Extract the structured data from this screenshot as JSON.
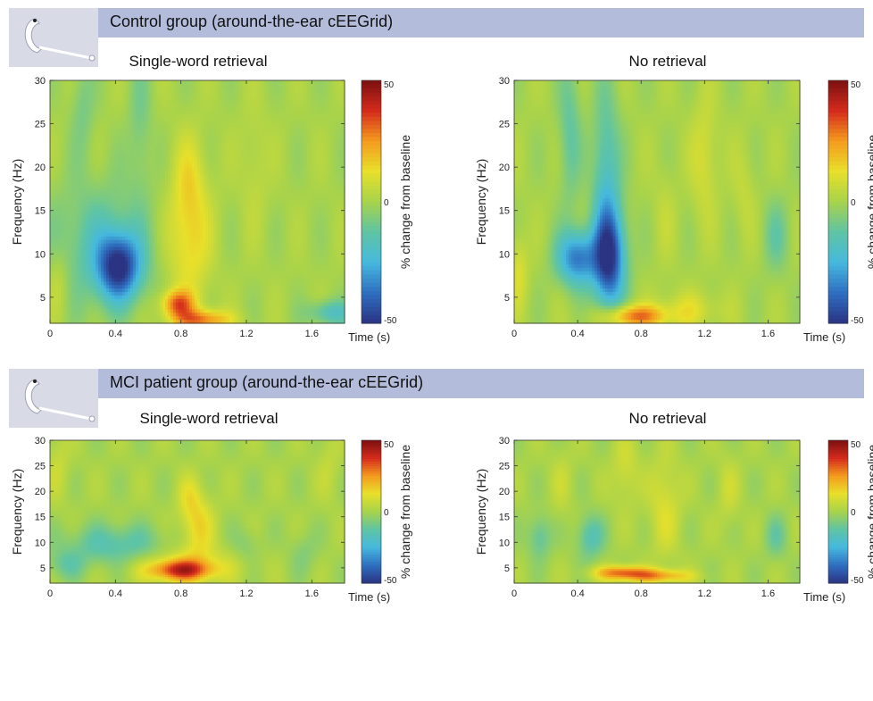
{
  "groups": [
    {
      "title": "Control group (around-the-ear cEEGrid)"
    },
    {
      "title": "MCI patient group (around-the-ear cEEGrid)"
    }
  ],
  "icons": {
    "ear_electrode": "cEEGrid-ear-electrode-icon"
  },
  "colors": {
    "header_bar": "#b4bcdc",
    "colormap": [
      "#2b3383",
      "#2f6fc0",
      "#45b9de",
      "#5fc4a4",
      "#a8d34b",
      "#e8e02a",
      "#f49a1e",
      "#d42a1c",
      "#7a1010"
    ]
  },
  "chart_data": [
    {
      "type": "heatmap",
      "title": "Single-word retrieval",
      "xlabel": "Time (s)",
      "ylabel": "Frequency (Hz)",
      "xlim": [
        0,
        1.8
      ],
      "ylim": [
        2,
        30
      ],
      "xticks": [
        "0",
        "0.4",
        "0.8",
        "1.2",
        "1.6"
      ],
      "yticks": [
        "5",
        "10",
        "15",
        "20",
        "25",
        "30"
      ],
      "colorbar": {
        "label": "% change from baseline",
        "ticks": [
          "50",
          "0",
          "-50"
        ],
        "range": [
          -50,
          50
        ]
      },
      "blobs": [
        {
          "t": 0.42,
          "f": 8.5,
          "st": 0.09,
          "sf": 2.6,
          "v": -46
        },
        {
          "t": 0.3,
          "f": 11,
          "st": 0.22,
          "sf": 5,
          "v": -14
        },
        {
          "t": 0.85,
          "f": 12,
          "st": 0.09,
          "sf": 5.5,
          "v": 16
        },
        {
          "t": 0.85,
          "f": 19,
          "st": 0.07,
          "sf": 3.5,
          "v": 7
        },
        {
          "t": 0.78,
          "f": 4.2,
          "st": 0.07,
          "sf": 1.1,
          "v": 30
        },
        {
          "t": 0.93,
          "f": 2.4,
          "st": 0.12,
          "sf": 0.8,
          "v": 28
        },
        {
          "t": 1.72,
          "f": 3.2,
          "st": 0.1,
          "sf": 1.0,
          "v": -18
        },
        {
          "t": 0.05,
          "f": 7,
          "st": 0.05,
          "sf": 3,
          "v": 8
        },
        {
          "t": 0.55,
          "f": 25,
          "st": 0.05,
          "sf": 6,
          "v": -8
        },
        {
          "t": 0.2,
          "f": 27,
          "st": 0.05,
          "sf": 4,
          "v": -8
        },
        {
          "t": 1.25,
          "f": 20,
          "st": 0.06,
          "sf": 5,
          "v": 5
        }
      ]
    },
    {
      "type": "heatmap",
      "title": "No retrieval",
      "xlabel": "Time (s)",
      "ylabel": "Frequency (Hz)",
      "xlim": [
        0,
        1.8
      ],
      "ylim": [
        2,
        30
      ],
      "xticks": [
        "0",
        "0.4",
        "0.8",
        "1.2",
        "1.6"
      ],
      "yticks": [
        "5",
        "10",
        "15",
        "20",
        "25",
        "30"
      ],
      "colorbar": {
        "label": "% change from baseline",
        "ticks": [
          "50",
          "0",
          "-50"
        ],
        "range": [
          -50,
          50
        ]
      },
      "blobs": [
        {
          "t": 0.4,
          "f": 9.5,
          "st": 0.09,
          "sf": 2.2,
          "v": -36
        },
        {
          "t": 0.6,
          "f": 9.5,
          "st": 0.07,
          "sf": 4.0,
          "v": -46
        },
        {
          "t": 0.58,
          "f": 19,
          "st": 0.06,
          "sf": 7,
          "v": -18
        },
        {
          "t": 0.35,
          "f": 24,
          "st": 0.05,
          "sf": 6,
          "v": -12
        },
        {
          "t": 0.75,
          "f": 2.8,
          "st": 0.14,
          "sf": 0.9,
          "v": 30
        },
        {
          "t": 1.1,
          "f": 3.5,
          "st": 0.15,
          "sf": 1.5,
          "v": 10
        },
        {
          "t": 1.2,
          "f": 21,
          "st": 0.06,
          "sf": 5,
          "v": 9
        },
        {
          "t": 0.03,
          "f": 8,
          "st": 0.04,
          "sf": 3,
          "v": 10
        },
        {
          "t": 1.65,
          "f": 12,
          "st": 0.06,
          "sf": 3,
          "v": -10
        },
        {
          "t": 1.45,
          "f": 17,
          "st": 0.05,
          "sf": 4,
          "v": 5
        },
        {
          "t": 0.95,
          "f": 15,
          "st": 0.05,
          "sf": 4,
          "v": 4
        }
      ]
    },
    {
      "type": "heatmap",
      "title": "Single-word retrieval",
      "xlabel": "Time (s)",
      "ylabel": "Frequency (Hz)",
      "xlim": [
        0,
        1.8
      ],
      "ylim": [
        2,
        30
      ],
      "xticks": [
        "0",
        "0.4",
        "0.8",
        "1.2",
        "1.6"
      ],
      "yticks": [
        "5",
        "10",
        "15",
        "20",
        "25",
        "30"
      ],
      "colorbar": {
        "label": "% change from baseline",
        "ticks": [
          "50",
          "0",
          "-50"
        ],
        "range": [
          -50,
          50
        ]
      },
      "blobs": [
        {
          "t": 0.8,
          "f": 4.5,
          "st": 0.13,
          "sf": 1.4,
          "v": 32
        },
        {
          "t": 0.83,
          "f": 5.5,
          "st": 0.22,
          "sf": 2.5,
          "v": 12
        },
        {
          "t": 0.9,
          "f": 13,
          "st": 0.07,
          "sf": 4.5,
          "v": 15
        },
        {
          "t": 0.85,
          "f": 19,
          "st": 0.05,
          "sf": 3,
          "v": 8
        },
        {
          "t": 0.4,
          "f": 9.5,
          "st": 0.22,
          "sf": 2.8,
          "v": -15
        },
        {
          "t": 0.1,
          "f": 5.5,
          "st": 0.08,
          "sf": 2,
          "v": -10
        },
        {
          "t": 1.2,
          "f": 9.5,
          "st": 0.06,
          "sf": 2.5,
          "v": -6
        },
        {
          "t": 1.55,
          "f": 8,
          "st": 0.06,
          "sf": 3,
          "v": -6
        },
        {
          "t": 0.05,
          "f": 25,
          "st": 0.05,
          "sf": 5,
          "v": 6
        },
        {
          "t": 1.7,
          "f": 25,
          "st": 0.05,
          "sf": 5,
          "v": 5
        }
      ]
    },
    {
      "type": "heatmap",
      "title": "No retrieval",
      "xlabel": "Time (s)",
      "ylabel": "Frequency (Hz)",
      "xlim": [
        0,
        1.8
      ],
      "ylim": [
        2,
        30
      ],
      "xticks": [
        "0",
        "0.4",
        "0.8",
        "1.2",
        "1.6"
      ],
      "yticks": [
        "5",
        "10",
        "15",
        "20",
        "25",
        "30"
      ],
      "colorbar": {
        "label": "% change from baseline",
        "ticks": [
          "50",
          "0",
          "-50"
        ],
        "range": [
          -50,
          50
        ]
      },
      "blobs": [
        {
          "t": 0.68,
          "f": 4.0,
          "st": 0.12,
          "sf": 1.0,
          "v": 30
        },
        {
          "t": 0.92,
          "f": 3.4,
          "st": 0.14,
          "sf": 0.9,
          "v": 22
        },
        {
          "t": 0.95,
          "f": 17,
          "st": 0.07,
          "sf": 7,
          "v": 10
        },
        {
          "t": 0.7,
          "f": 24,
          "st": 0.06,
          "sf": 5,
          "v": 8
        },
        {
          "t": 0.16,
          "f": 11,
          "st": 0.05,
          "sf": 3,
          "v": -13
        },
        {
          "t": 0.48,
          "f": 11,
          "st": 0.06,
          "sf": 3,
          "v": -16
        },
        {
          "t": 1.65,
          "f": 11,
          "st": 0.05,
          "sf": 3,
          "v": -10
        },
        {
          "t": 1.35,
          "f": 20,
          "st": 0.05,
          "sf": 5,
          "v": 6
        },
        {
          "t": 0.3,
          "f": 22,
          "st": 0.05,
          "sf": 5,
          "v": 5
        }
      ]
    }
  ]
}
